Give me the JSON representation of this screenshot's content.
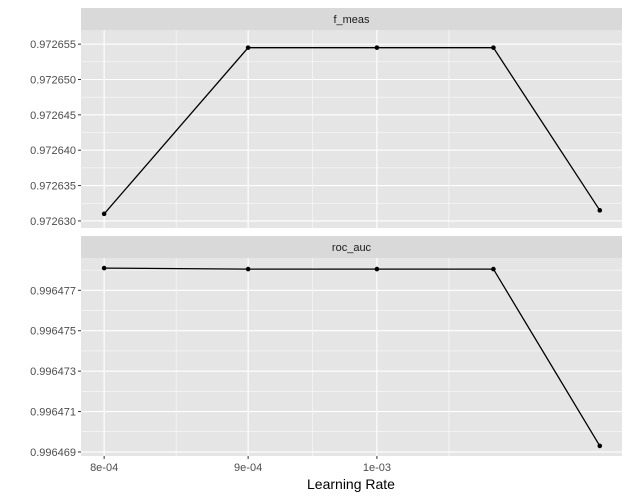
{
  "chart_data": {
    "type": "line",
    "xlabel": "Learning Rate",
    "x_axis": {
      "scale": "log10",
      "ticks": [
        0.0008,
        0.0009,
        0.001
      ],
      "tick_labels": [
        "8e-04",
        "9e-04",
        "1e-03"
      ],
      "range": [
        0.000785,
        0.001222
      ]
    },
    "grid": true,
    "legend": "none",
    "colors": {
      "panel_bg": "#e5e5e5",
      "grid": "#ffffff",
      "strip_bg": "#d9d9d9",
      "line": "#000000"
    },
    "panels": [
      {
        "label": "f_meas",
        "ylim": [
          0.972629,
          0.972657
        ],
        "y_ticks": [
          0.97263,
          0.972635,
          0.97264,
          0.972645,
          0.97265,
          0.972655
        ],
        "y_tick_labels": [
          "0.972630",
          "0.972635",
          "0.972640",
          "0.972645",
          "0.972650",
          "0.972655"
        ],
        "x": [
          0.0008,
          0.0009,
          0.001,
          0.0011,
          0.0012
        ],
        "values": [
          0.972631,
          0.9726545,
          0.9726545,
          0.9726545,
          0.9726315
        ]
      },
      {
        "label": "roc_auc",
        "ylim": [
          0.9964688,
          0.9964786
        ],
        "y_ticks": [
          0.996469,
          0.996471,
          0.996473,
          0.996475,
          0.996477
        ],
        "y_tick_labels": [
          "0.996469",
          "0.996471",
          "0.996473",
          "0.996475",
          "0.996477"
        ],
        "x": [
          0.0008,
          0.0009,
          0.001,
          0.0011,
          0.0012
        ],
        "values": [
          0.9964781,
          0.99647805,
          0.99647805,
          0.99647805,
          0.9964693
        ]
      }
    ]
  }
}
